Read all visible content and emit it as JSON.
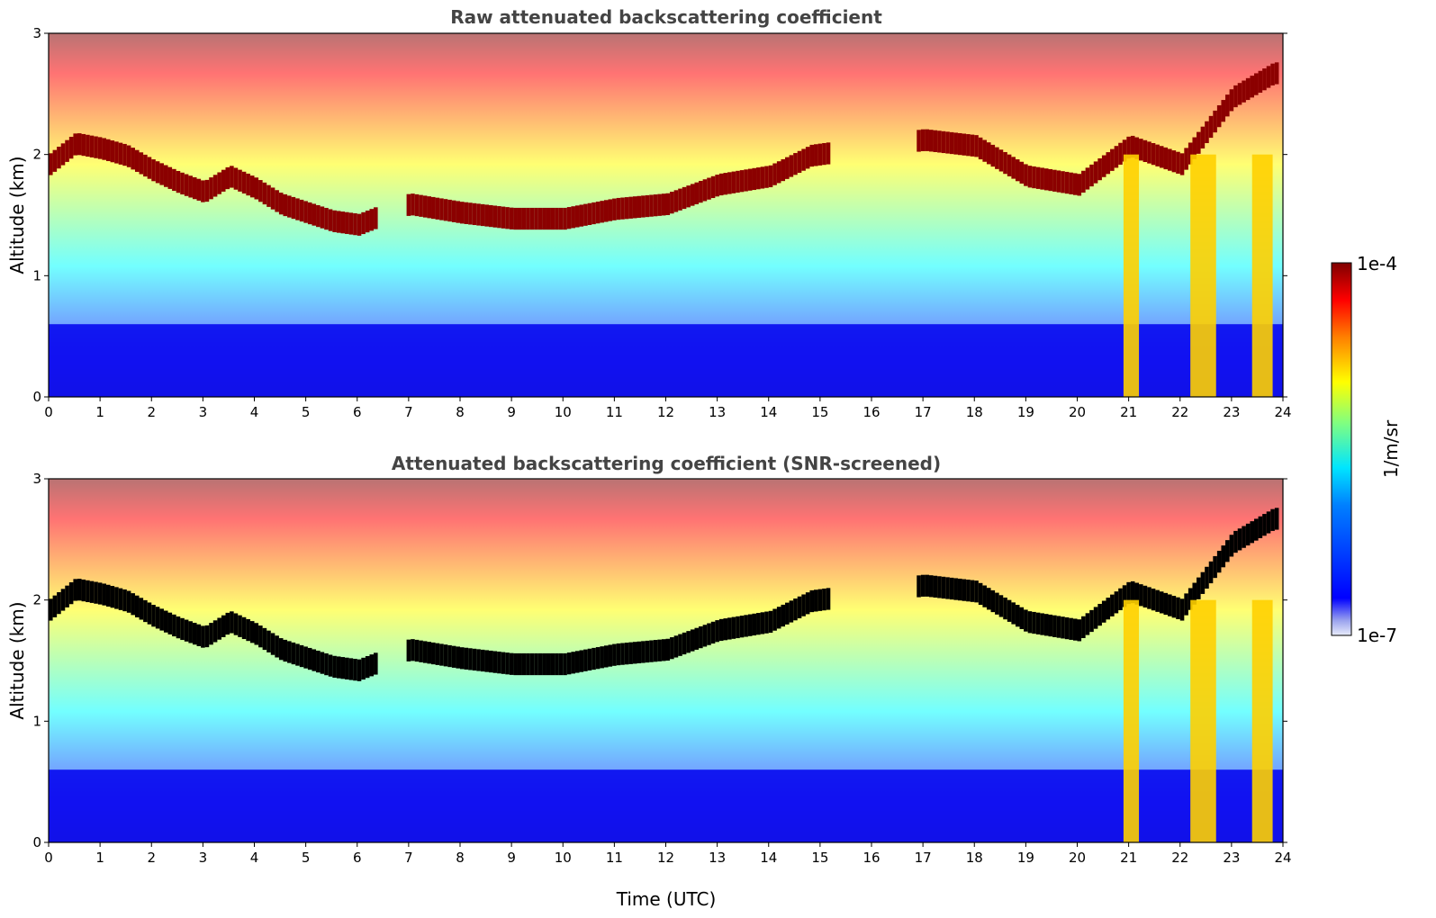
{
  "chart_data": [
    {
      "type": "heatmap",
      "title": "Raw attenuated backscattering coefficient",
      "xlabel": "",
      "ylabel": "Altitude (km)",
      "xlim": [
        0,
        24
      ],
      "ylim": [
        0,
        3
      ],
      "xticks": [
        "0",
        "1",
        "2",
        "3",
        "4",
        "5",
        "6",
        "7",
        "8",
        "9",
        "10",
        "11",
        "12",
        "13",
        "14",
        "15",
        "16",
        "17",
        "18",
        "19",
        "20",
        "21",
        "22",
        "23",
        "24"
      ],
      "yticks": [
        "0",
        "1",
        "2",
        "3"
      ],
      "colorscale": "jet",
      "cloud_base_km": [
        [
          0.0,
          1.95
        ],
        [
          0.5,
          2.12
        ],
        [
          1.0,
          2.08
        ],
        [
          1.5,
          2.02
        ],
        [
          2.0,
          1.9
        ],
        [
          2.5,
          1.8
        ],
        [
          3.0,
          1.72
        ],
        [
          3.5,
          1.85
        ],
        [
          4.0,
          1.75
        ],
        [
          4.5,
          1.62
        ],
        [
          5.0,
          1.55
        ],
        [
          5.5,
          1.48
        ],
        [
          6.0,
          1.45
        ],
        [
          7.0,
          1.62
        ],
        [
          8.0,
          1.55
        ],
        [
          9.0,
          1.5
        ],
        [
          10.0,
          1.5
        ],
        [
          11.0,
          1.58
        ],
        [
          12.0,
          1.62
        ],
        [
          13.0,
          1.78
        ],
        [
          14.0,
          1.85
        ],
        [
          14.8,
          2.02
        ],
        [
          17.0,
          2.15
        ],
        [
          18.0,
          2.1
        ],
        [
          19.0,
          1.85
        ],
        [
          20.0,
          1.78
        ],
        [
          21.0,
          2.1
        ],
        [
          22.0,
          1.95
        ],
        [
          23.0,
          2.5
        ],
        [
          23.8,
          2.7
        ]
      ],
      "precip_bands": [
        [
          20.9,
          21.2
        ],
        [
          22.2,
          22.7
        ],
        [
          23.4,
          23.8
        ]
      ]
    },
    {
      "type": "heatmap",
      "title": "Attenuated backscattering coefficient (SNR-screened)",
      "xlabel": "Time (UTC)",
      "ylabel": "Altitude (km)",
      "xlim": [
        0,
        24
      ],
      "ylim": [
        0,
        3
      ],
      "xticks": [
        "0",
        "1",
        "2",
        "3",
        "4",
        "5",
        "6",
        "7",
        "8",
        "9",
        "10",
        "11",
        "12",
        "13",
        "14",
        "15",
        "16",
        "17",
        "18",
        "19",
        "20",
        "21",
        "22",
        "23",
        "24"
      ],
      "yticks": [
        "0",
        "1",
        "2",
        "3"
      ],
      "colorscale": "jet"
    }
  ],
  "colorbar": {
    "label": "1/m/sr",
    "max_label": "1e-4",
    "min_label": "1e-7",
    "range": [
      1e-07,
      0.0001
    ],
    "scale": "log"
  },
  "colors": {
    "title": "#444444",
    "cloud": "#8b0000",
    "screened_cloud": "#000000",
    "low_signal": "#0000ff"
  }
}
